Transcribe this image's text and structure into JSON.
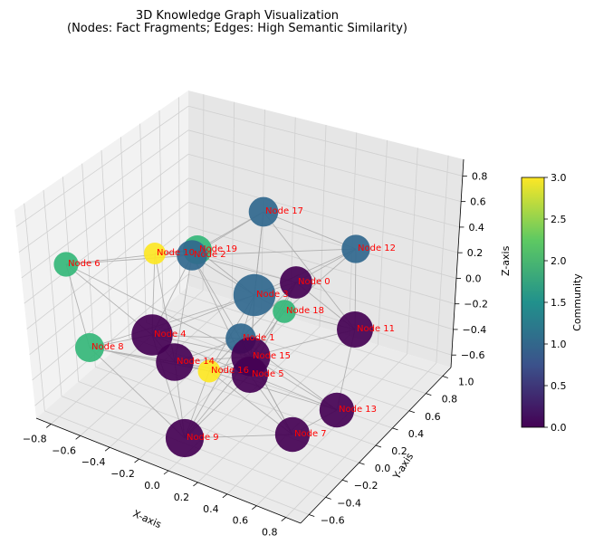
{
  "chart_data": {
    "type": "scatter",
    "title": {
      "line1": "3D Knowledge Graph Visualization",
      "line2": "(Nodes: Fact Fragments; Edges: High Semantic Similarity)"
    },
    "axes": {
      "x": {
        "label": "X-axis",
        "ticks": [
          "−0.8",
          "−0.6",
          "−0.4",
          "−0.2",
          "0.0",
          "0.2",
          "0.4",
          "0.6",
          "0.8"
        ]
      },
      "y": {
        "label": "Y-axis",
        "ticks": [
          "−0.6",
          "−0.4",
          "−0.2",
          "0.0",
          "0.2",
          "0.4",
          "0.6",
          "0.8",
          "1.0"
        ]
      },
      "z": {
        "label": "Z-axis",
        "ticks": [
          "−0.6",
          "−0.4",
          "−0.2",
          "0.0",
          "0.2",
          "0.4",
          "0.6",
          "0.8"
        ]
      }
    },
    "grid": true,
    "colorbar": {
      "label": "Community",
      "min": 0.0,
      "max": 3.0,
      "ticks": [
        "0.0",
        "0.5",
        "1.0",
        "1.5",
        "2.0",
        "2.5",
        "3.0"
      ],
      "colormap": [
        "#440154",
        "#3b528b",
        "#21918c",
        "#5ec962",
        "#fde725"
      ]
    },
    "nodes": [
      {
        "label": "Node 0",
        "community": 0,
        "importance": 0.62
      },
      {
        "label": "Node 1",
        "community": 1,
        "importance": 0.55
      },
      {
        "label": "Node 2",
        "community": 1,
        "importance": 0.55
      },
      {
        "label": "Node 3",
        "community": 1,
        "importance": 0.95
      },
      {
        "label": "Node 4",
        "community": 0,
        "importance": 0.92
      },
      {
        "label": "Node 5",
        "community": 0,
        "importance": 0.75
      },
      {
        "label": "Node 6",
        "community": 2,
        "importance": 0.35
      },
      {
        "label": "Node 7",
        "community": 0,
        "importance": 0.7
      },
      {
        "label": "Node 8",
        "community": 2,
        "importance": 0.5
      },
      {
        "label": "Node 9",
        "community": 0,
        "importance": 0.82
      },
      {
        "label": "Node 10",
        "community": 3,
        "importance": 0.25
      },
      {
        "label": "Node 11",
        "community": 0,
        "importance": 0.75
      },
      {
        "label": "Node 12",
        "community": 1,
        "importance": 0.48
      },
      {
        "label": "Node 13",
        "community": 0,
        "importance": 0.7
      },
      {
        "label": "Node 14",
        "community": 0,
        "importance": 0.8
      },
      {
        "label": "Node 15",
        "community": 0,
        "importance": 0.85
      },
      {
        "label": "Node 16",
        "community": 3,
        "importance": 0.28
      },
      {
        "label": "Node 17",
        "community": 1,
        "importance": 0.52
      },
      {
        "label": "Node 18",
        "community": 2,
        "importance": 0.3
      },
      {
        "label": "Node 19",
        "community": 2,
        "importance": 0.5
      }
    ],
    "edges": [
      [
        0,
        1
      ],
      [
        0,
        2
      ],
      [
        0,
        3
      ],
      [
        0,
        5
      ],
      [
        0,
        11
      ],
      [
        0,
        12
      ],
      [
        0,
        15
      ],
      [
        1,
        3
      ],
      [
        1,
        4
      ],
      [
        1,
        5
      ],
      [
        1,
        7
      ],
      [
        1,
        9
      ],
      [
        1,
        13
      ],
      [
        1,
        14
      ],
      [
        1,
        15
      ],
      [
        1,
        16
      ],
      [
        2,
        3
      ],
      [
        2,
        4
      ],
      [
        2,
        6
      ],
      [
        2,
        17
      ],
      [
        2,
        19
      ],
      [
        2,
        12
      ],
      [
        2,
        14
      ],
      [
        2,
        15
      ],
      [
        2,
        5
      ],
      [
        3,
        4
      ],
      [
        3,
        5
      ],
      [
        3,
        15
      ],
      [
        3,
        17
      ],
      [
        3,
        18
      ],
      [
        3,
        19
      ],
      [
        3,
        12
      ],
      [
        3,
        16
      ],
      [
        3,
        8
      ],
      [
        4,
        5
      ],
      [
        4,
        8
      ],
      [
        4,
        9
      ],
      [
        4,
        14
      ],
      [
        4,
        15
      ],
      [
        4,
        6
      ],
      [
        4,
        10
      ],
      [
        5,
        7
      ],
      [
        5,
        9
      ],
      [
        5,
        13
      ],
      [
        5,
        14
      ],
      [
        5,
        16
      ],
      [
        6,
        8
      ],
      [
        6,
        19
      ],
      [
        6,
        15
      ],
      [
        7,
        9
      ],
      [
        7,
        13
      ],
      [
        7,
        15
      ],
      [
        7,
        16
      ],
      [
        8,
        14
      ],
      [
        8,
        9
      ],
      [
        8,
        16
      ],
      [
        9,
        14
      ],
      [
        9,
        15
      ],
      [
        9,
        16
      ],
      [
        10,
        19
      ],
      [
        10,
        14
      ],
      [
        10,
        2
      ],
      [
        11,
        12
      ],
      [
        11,
        13
      ],
      [
        11,
        15
      ],
      [
        11,
        18
      ],
      [
        11,
        17
      ],
      [
        12,
        17
      ],
      [
        12,
        18
      ],
      [
        13,
        15
      ],
      [
        13,
        16
      ],
      [
        14,
        15
      ],
      [
        14,
        16
      ],
      [
        15,
        16
      ],
      [
        15,
        18
      ],
      [
        17,
        19
      ],
      [
        17,
        3
      ],
      [
        18,
        15
      ]
    ]
  }
}
